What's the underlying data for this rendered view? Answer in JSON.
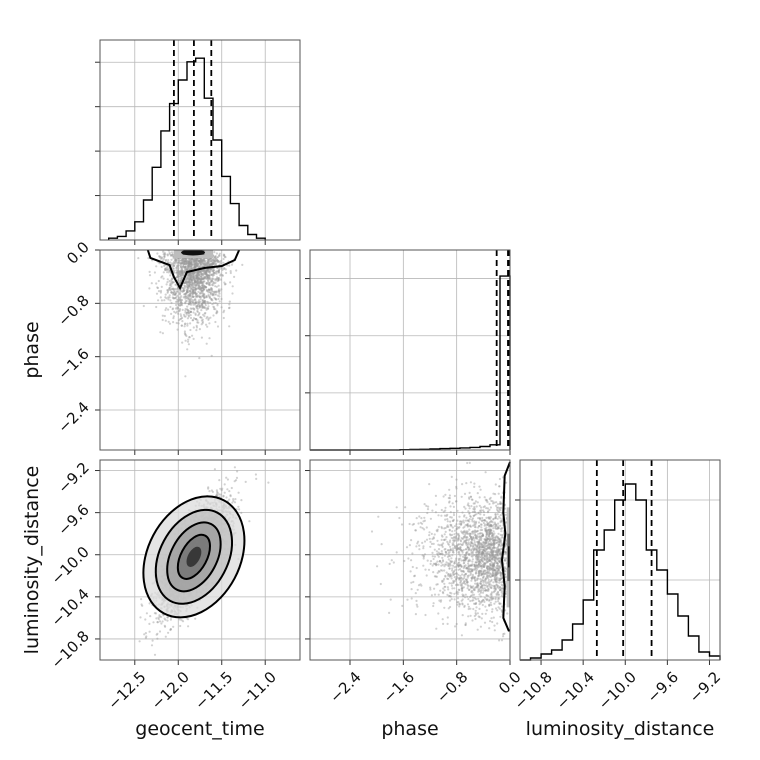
{
  "chart_data": [
    {
      "panel": "geocent_time-hist",
      "type": "bar",
      "xlim": [
        -12.9,
        -10.6
      ],
      "bin_edges": [
        -12.8,
        -12.7,
        -12.6,
        -12.5,
        -12.4,
        -12.3,
        -12.2,
        -12.1,
        -12.0,
        -11.9,
        -11.8,
        -11.7,
        -11.6,
        -11.5,
        -11.4,
        -11.3,
        -11.2,
        -11.1,
        -11.0
      ],
      "counts": [
        1,
        2,
        5,
        10,
        22,
        40,
        60,
        75,
        88,
        98,
        100,
        78,
        55,
        35,
        20,
        8,
        3,
        1
      ],
      "ylim": [
        0,
        110
      ],
      "quantiles": [
        -12.05,
        -11.82,
        -11.62
      ],
      "x_ticks": [
        "−12.5",
        "−12.0",
        "−11.5",
        "−11.0"
      ],
      "x_tick_values": [
        -12.5,
        -12.0,
        -11.5,
        -11.0
      ],
      "xlabel": "geocent_time"
    },
    {
      "panel": "phase-hist",
      "type": "bar",
      "xlim": [
        -3.0,
        0.0
      ],
      "bin_edges": [
        -3.0,
        -2.85,
        -2.7,
        -2.55,
        -2.4,
        -2.25,
        -2.1,
        -1.95,
        -1.8,
        -1.65,
        -1.5,
        -1.35,
        -1.2,
        -1.05,
        -0.9,
        -0.75,
        -0.6,
        -0.45,
        -0.3,
        -0.15,
        0.0
      ],
      "counts": [
        0,
        0,
        0,
        0,
        0,
        0,
        0,
        0,
        0,
        0.2,
        0.3,
        0.4,
        0.6,
        0.8,
        1,
        1.2,
        1.5,
        2,
        3,
        100
      ],
      "ylim": [
        0,
        115
      ],
      "quantiles": [
        -0.2,
        -0.03,
        0.0
      ],
      "x_ticks": [
        "−2.4",
        "−1.6",
        "−0.8",
        "0.0"
      ],
      "x_tick_values": [
        -2.4,
        -1.6,
        -0.8,
        0.0
      ],
      "xlabel": "phase"
    },
    {
      "panel": "luminosity_distance-hist",
      "type": "bar",
      "xlim": [
        -11.0,
        -9.1
      ],
      "bin_edges": [
        -11.0,
        -10.9,
        -10.8,
        -10.7,
        -10.6,
        -10.5,
        -10.4,
        -10.3,
        -10.2,
        -10.1,
        -10.0,
        -9.9,
        -9.8,
        -9.7,
        -9.6,
        -9.5,
        -9.4,
        -9.3,
        -9.2,
        -9.1
      ],
      "counts": [
        0,
        1,
        3,
        5,
        10,
        18,
        30,
        55,
        65,
        80,
        88,
        80,
        55,
        45,
        33,
        22,
        12,
        4,
        2
      ],
      "ylim": [
        0,
        100
      ],
      "quantiles": [
        -10.27,
        -10.02,
        -9.75
      ],
      "x_ticks": [
        "−10.8",
        "−10.4",
        "−10.0",
        "−9.6",
        "−9.2"
      ],
      "x_tick_values": [
        -10.8,
        -10.4,
        -10.0,
        -9.6,
        -9.2
      ],
      "xlabel": "luminosity_distance"
    },
    {
      "panel": "geocent_time-vs-phase",
      "type": "scatter",
      "xlim": [
        -12.9,
        -10.6
      ],
      "ylim": [
        -3.0,
        0.0
      ],
      "center": [
        -11.82,
        -0.05
      ],
      "y_ticks": [
        "0.0",
        "−0.8",
        "−1.6",
        "−2.4"
      ],
      "y_tick_values": [
        0.0,
        -0.8,
        -1.6,
        -2.4
      ],
      "ylabel": "phase"
    },
    {
      "panel": "geocent_time-vs-luminosity_distance",
      "type": "scatter",
      "xlim": [
        -12.9,
        -10.6
      ],
      "ylim": [
        -11.0,
        -9.1
      ],
      "center": [
        -11.82,
        -10.02
      ],
      "y_ticks": [
        "−9.2",
        "−9.6",
        "−10.0",
        "−10.4",
        "−10.8"
      ],
      "y_tick_values": [
        -9.2,
        -9.6,
        -10.0,
        -10.4,
        -10.8
      ],
      "ylabel": "luminosity_distance"
    },
    {
      "panel": "phase-vs-luminosity_distance",
      "type": "scatter",
      "xlim": [
        -3.0,
        0.0
      ],
      "ylim": [
        -11.0,
        -9.1
      ],
      "center": [
        -0.05,
        -10.02
      ]
    }
  ]
}
